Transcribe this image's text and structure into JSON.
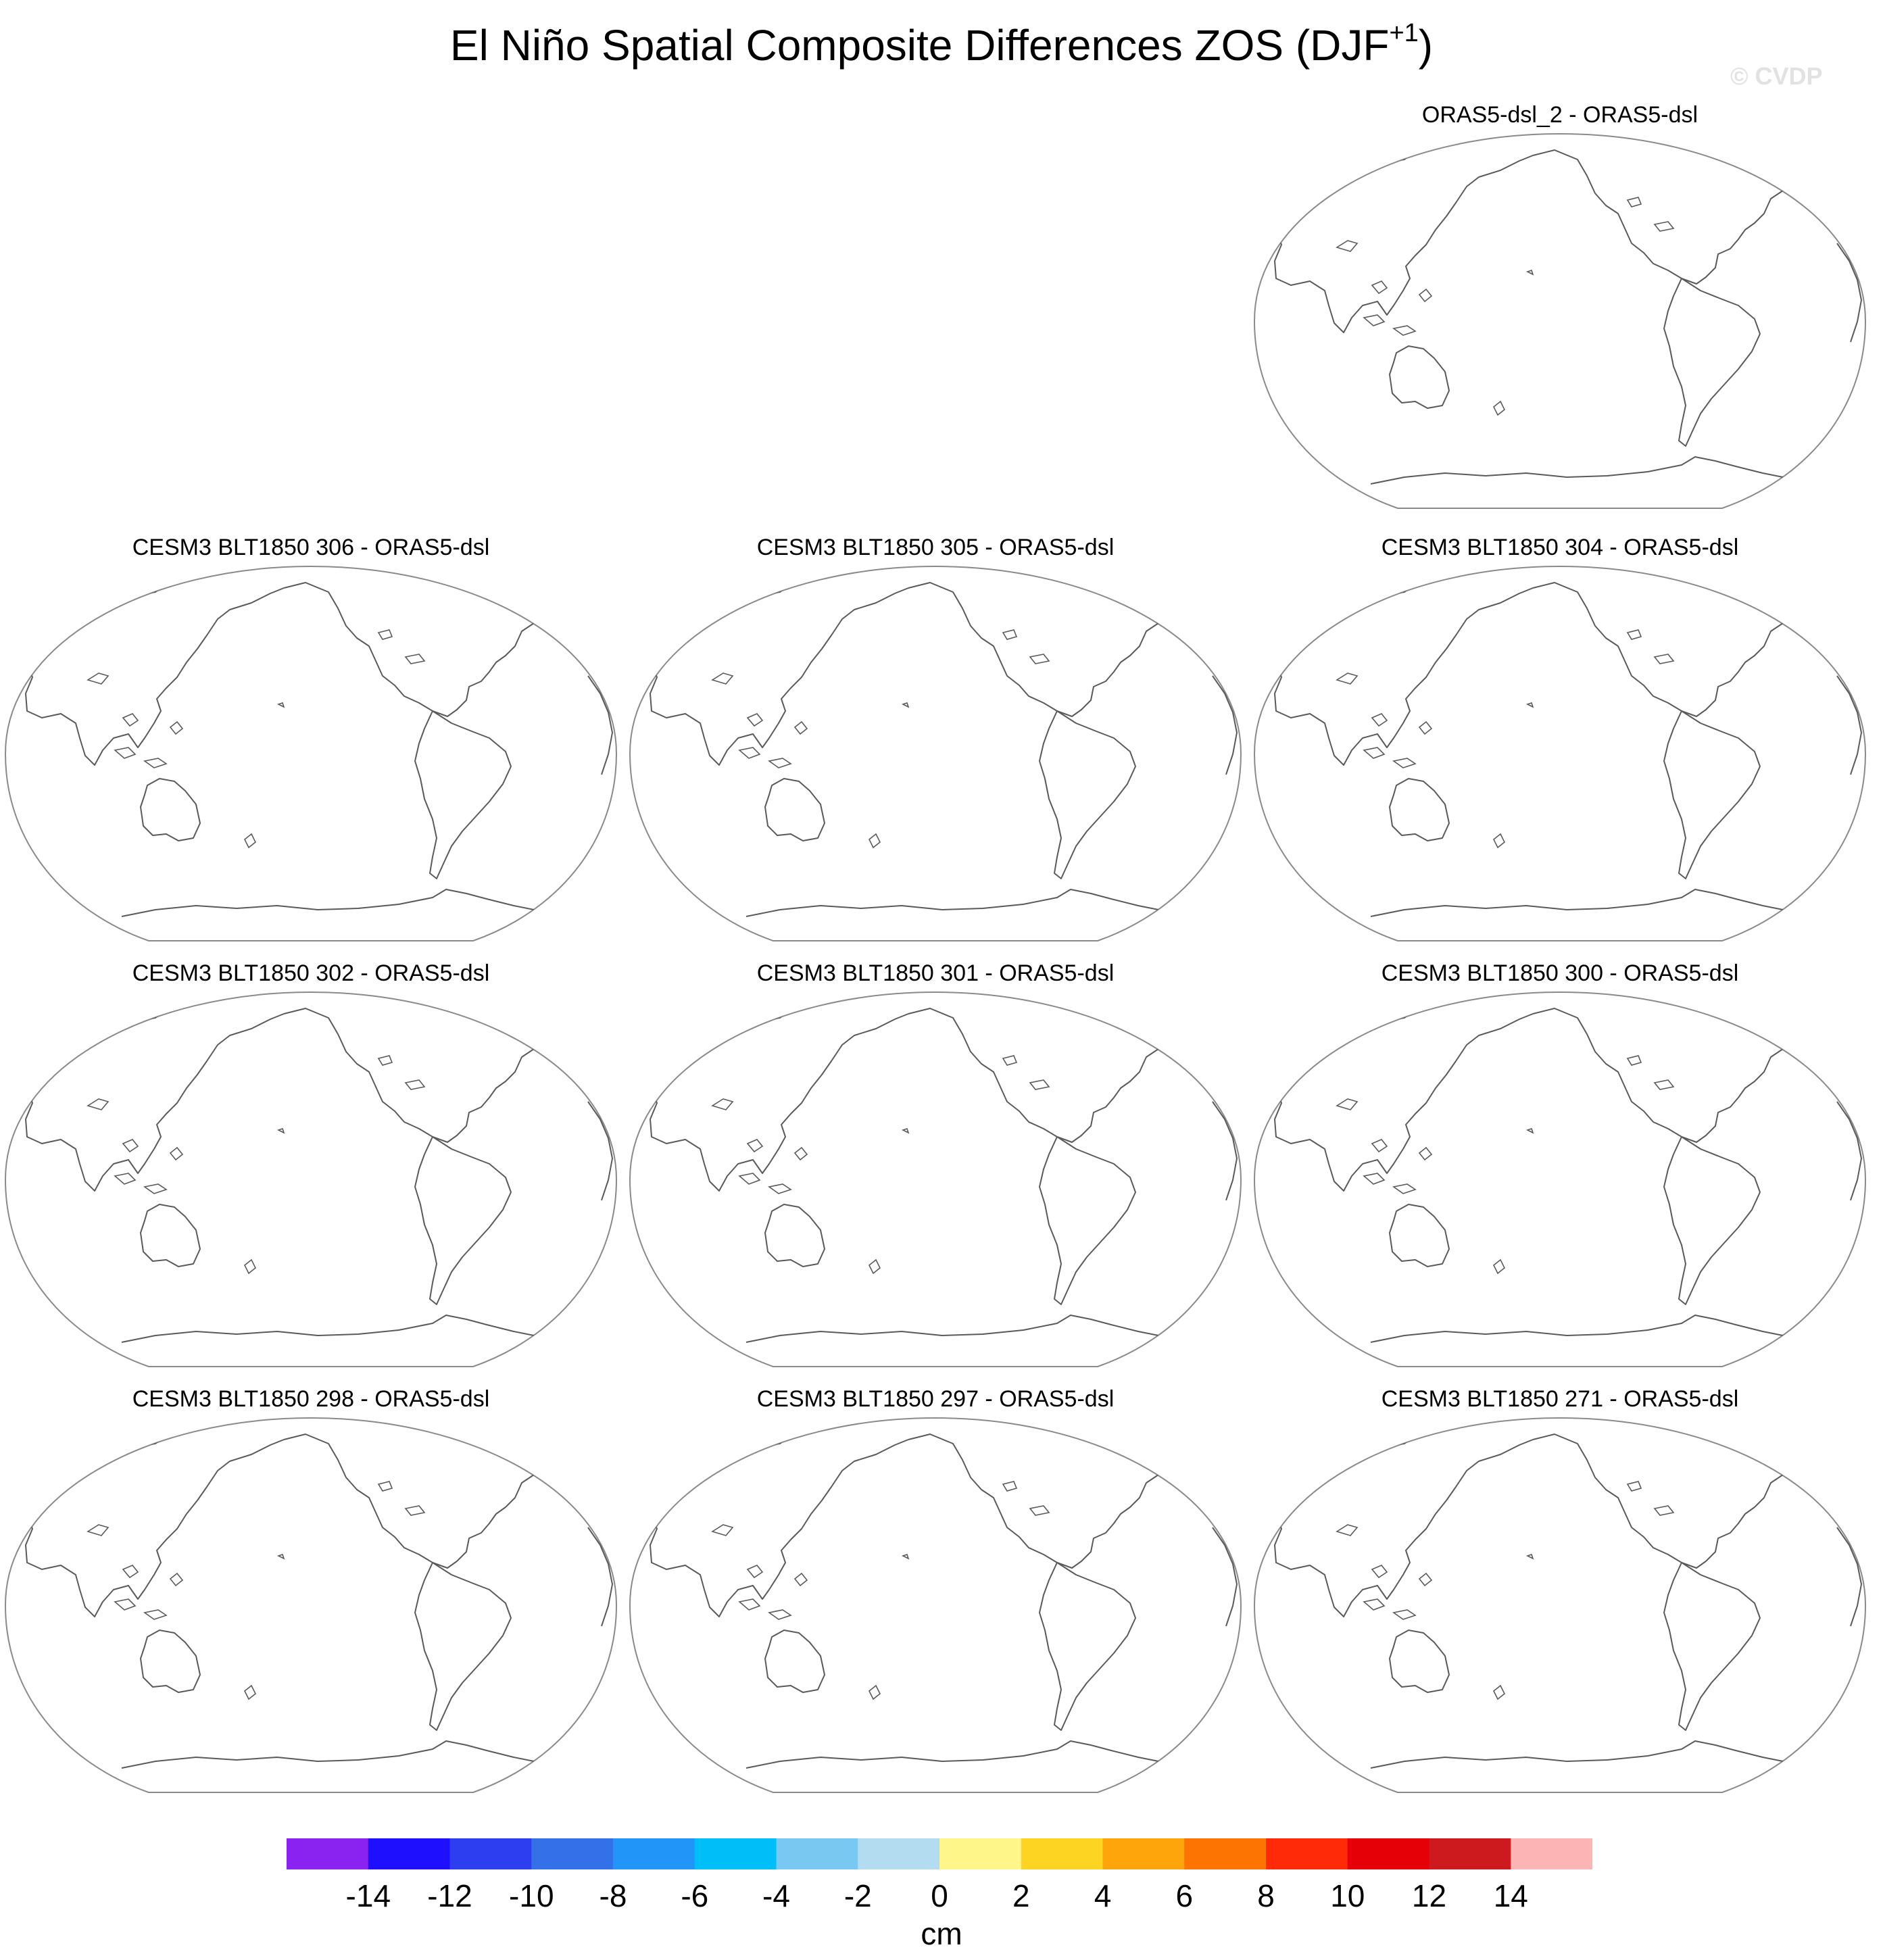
{
  "figure": {
    "title": "El Niño Spatial Composite Differences ZOS (DJF",
    "title_superscript": "+1",
    "title_close": ")",
    "watermark": "© CVDP"
  },
  "panels": [
    {
      "title": "ORAS5-dsl_2 - ORAS5-dsl"
    },
    {
      "title": "CESM3 BLT1850 306 - ORAS5-dsl"
    },
    {
      "title": "CESM3 BLT1850 305 - ORAS5-dsl"
    },
    {
      "title": "CESM3 BLT1850 304 - ORAS5-dsl"
    },
    {
      "title": "CESM3 BLT1850 302 - ORAS5-dsl"
    },
    {
      "title": "CESM3 BLT1850 301 - ORAS5-dsl"
    },
    {
      "title": "CESM3 BLT1850 300 - ORAS5-dsl"
    },
    {
      "title": "CESM3 BLT1850 298 - ORAS5-dsl"
    },
    {
      "title": "CESM3 BLT1850 297 - ORAS5-dsl"
    },
    {
      "title": "CESM3 BLT1850 271 - ORAS5-dsl"
    }
  ],
  "colorbar": {
    "units": "cm",
    "labels": [
      "-14",
      "-12",
      "-10",
      "-8",
      "-6",
      "-4",
      "-2",
      "0",
      "2",
      "4",
      "6",
      "8",
      "10",
      "12",
      "14"
    ],
    "colors": [
      "#8a22f0",
      "#1e10ff",
      "#2c3ef0",
      "#3470e8",
      "#2196f8",
      "#00bef8",
      "#78c8f2",
      "#b4dcf0",
      "#fff68a",
      "#fed423",
      "#fea50c",
      "#fe7402",
      "#fe2a08",
      "#e40006",
      "#cc1a1e",
      "#fdb4b4"
    ]
  }
}
